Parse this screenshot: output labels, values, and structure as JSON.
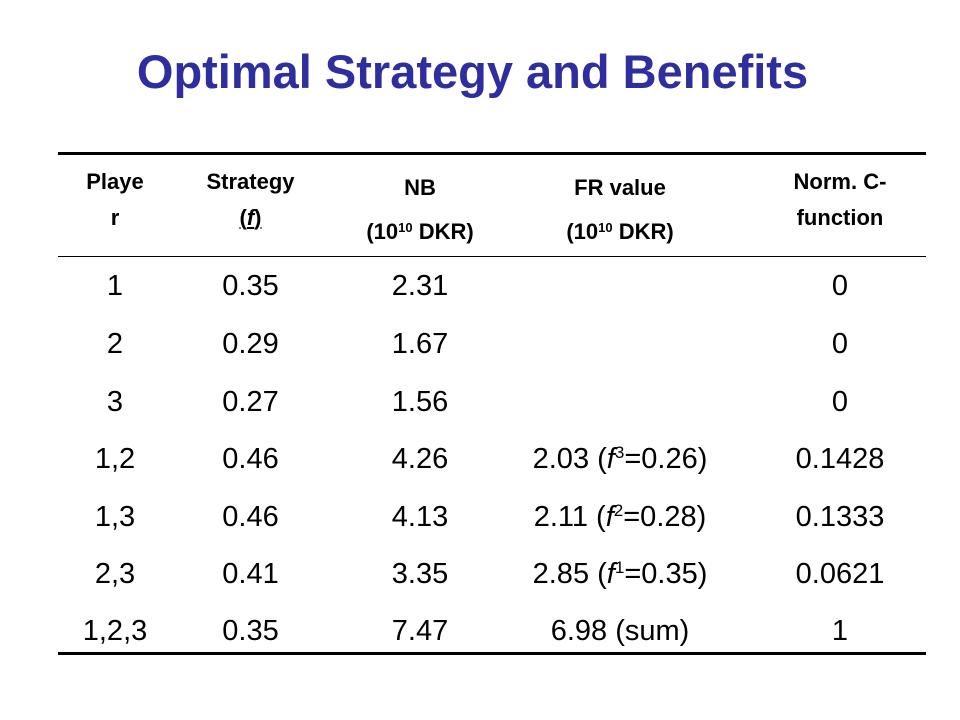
{
  "title": "Optimal Strategy and Benefits",
  "header": {
    "player_l1": "Playe",
    "player_l2": "r",
    "strategy_l1": "Strategy",
    "strategy_l2_open": "(",
    "strategy_l2_var": "f",
    "strategy_l2_close": ")",
    "nb_l1": "NB",
    "nb_l2_pre": "(10",
    "nb_l2_exp": "10",
    "nb_l2_post": " DKR)",
    "fr_l1": "FR value",
    "fr_l2_pre": "(10",
    "fr_l2_exp": "10",
    "fr_l2_post": " DKR)",
    "norm_l1": "Norm. C-",
    "norm_l2": "function"
  },
  "rows": [
    {
      "player": "1",
      "strategy": "0.35",
      "nb": "2.31",
      "fr_val": "",
      "fr_open": "",
      "fr_var": "",
      "fr_sup": "",
      "fr_rest": "",
      "norm": "0"
    },
    {
      "player": "2",
      "strategy": "0.29",
      "nb": "1.67",
      "fr_val": "",
      "fr_open": "",
      "fr_var": "",
      "fr_sup": "",
      "fr_rest": "",
      "norm": "0"
    },
    {
      "player": "3",
      "strategy": "0.27",
      "nb": "1.56",
      "fr_val": "",
      "fr_open": "",
      "fr_var": "",
      "fr_sup": "",
      "fr_rest": "",
      "norm": "0"
    },
    {
      "player": "1,2",
      "strategy": "0.46",
      "nb": "4.26",
      "fr_val": "2.03",
      "fr_open": " (",
      "fr_var": "f",
      "fr_sup": "3",
      "fr_rest": "=0.26)",
      "norm": "0.1428"
    },
    {
      "player": "1,3",
      "strategy": "0.46",
      "nb": "4.13",
      "fr_val": "2.11",
      "fr_open": " (",
      "fr_var": "f",
      "fr_sup": "2",
      "fr_rest": "=0.28)",
      "norm": "0.1333"
    },
    {
      "player": "2,3",
      "strategy": "0.41",
      "nb": "3.35",
      "fr_val": "2.85",
      "fr_open": " (",
      "fr_var": "f",
      "fr_sup": "1",
      "fr_rest": "=0.35)",
      "norm": "0.0621"
    },
    {
      "player": "1,2,3",
      "strategy": "0.35",
      "nb": "7.47",
      "fr_val": "6.98",
      "fr_open": " (sum)",
      "fr_var": "",
      "fr_sup": "",
      "fr_rest": "",
      "norm": "1"
    }
  ]
}
